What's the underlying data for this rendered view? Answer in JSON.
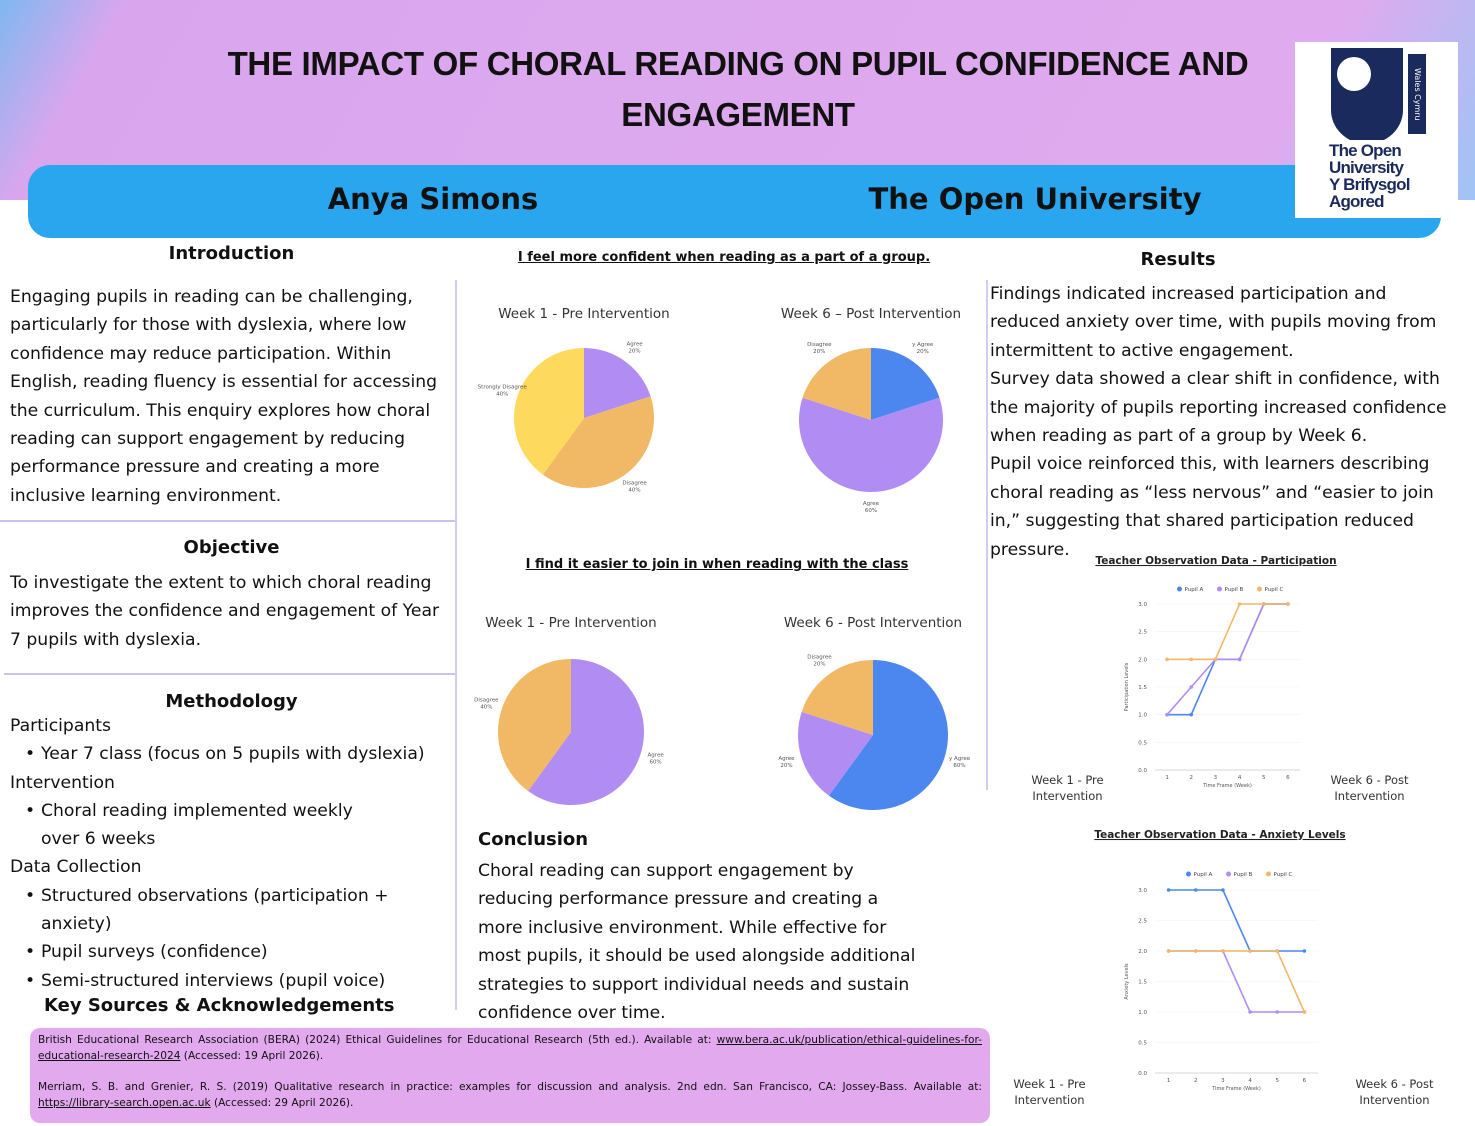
{
  "header": {
    "title": "THE IMPACT OF CHORAL READING ON PUPIL CONFIDENCE AND ENGAGEMENT",
    "author": "Anya Simons",
    "institution": "The Open University",
    "logo_lines": [
      "The Open",
      "University",
      "Y Brifysgol",
      "Agored"
    ],
    "logo_tag": "Wales Cymru"
  },
  "introduction": {
    "heading": "Introduction",
    "text": "Engaging pupils in reading can be challenging, particularly for those with dyslexia, where low confidence may reduce participation. Within English, reading fluency is essential for accessing the curriculum. This enquiry explores how choral reading can support engagement by reducing performance pressure and creating a more inclusive learning environment."
  },
  "objective": {
    "heading": "Objective",
    "text": "To investigate the extent to which choral reading improves the confidence and engagement of Year 7 pupils with dyslexia."
  },
  "methodology": {
    "heading": "Methodology",
    "groups": [
      {
        "label": "Participants",
        "bullets": [
          "Year 7 class (focus on 5 pupils with dyslexia)"
        ]
      },
      {
        "label": "Intervention",
        "bullets": [
          "Choral reading implemented weekly over 6 weeks"
        ]
      },
      {
        "label": "Data Collection",
        "bullets": [
          "Structured observations (participation + anxiety)",
          "Pupil surveys (confidence)",
          "Semi-structured interviews (pupil voice)"
        ]
      }
    ]
  },
  "survey_questions": [
    "I feel more confident when reading as a part of a group.",
    "I find it easier to join in when reading with the class"
  ],
  "conclusion": {
    "heading": "Conclusion",
    "text": "Choral reading can support engagement by reducing performance pressure and creating a more inclusive environment. While effective for most pupils, it should be used alongside additional strategies to support individual needs and sustain confidence over time."
  },
  "results": {
    "heading": "Results",
    "paragraphs": [
      "Findings indicated increased participation and reduced anxiety over time, with pupils moving from intermittent to active engagement.",
      "Survey data showed a clear shift in confidence, with the majority of pupils reporting increased confidence when reading as part of a group by Week 6.",
      "Pupil voice reinforced this, with learners describing choral reading as “less nervous” and “easier to join in,” suggesting that shared participation reduced pressure."
    ]
  },
  "sources": {
    "heading": "Key Sources & Acknowledgements",
    "references": [
      {
        "text": "British Educational Research Association (BERA) (2024) Ethical Guidelines for Educational Research (5th ed.). Available at: ",
        "link": "www.bera.ac.uk/publication/ethical-guidelines-for-educational-research-2024",
        "after": " (Accessed: 19 April 2026)."
      },
      {
        "text": "Merriam, S. B. and Grenier, R. S. (2019) Qualitative research in practice: examples for discussion and analysis. 2nd edn. San Francisco, CA: Jossey-Bass. Available at: ",
        "link": "https://library-search.open.ac.uk",
        "after": " (Accessed: 29 April 2026)."
      }
    ]
  },
  "chart_data": [
    {
      "type": "pie",
      "title": "Week 1 - Pre Intervention",
      "categories": [
        "Agree",
        "Disagree",
        "Strongly Disagree"
      ],
      "values": [
        20,
        40,
        40
      ],
      "value_labels": [
        "20%",
        "40%",
        "40%"
      ],
      "colors": [
        "#b18cf3",
        "#f1b866",
        "#fdda5e"
      ]
    },
    {
      "type": "pie",
      "title": "Week 6 – Post Intervention",
      "categories": [
        "y Agree",
        "Agree",
        "Disagree"
      ],
      "values": [
        20,
        60,
        20
      ],
      "value_labels": [
        "20%",
        "60%",
        "20%"
      ],
      "colors": [
        "#4c86ef",
        "#b18cf3",
        "#f1b866"
      ]
    },
    {
      "type": "pie",
      "title": "Week 1 - Pre Intervention",
      "categories": [
        "Agree",
        "Disagree"
      ],
      "values": [
        60,
        40
      ],
      "value_labels": [
        "60%",
        "40%"
      ],
      "colors": [
        "#b18cf3",
        "#f1b866"
      ]
    },
    {
      "type": "pie",
      "title": "Week 6 - Post Intervention",
      "categories": [
        "y Agree",
        "Agree",
        "Disagree"
      ],
      "values": [
        60,
        20,
        20
      ],
      "value_labels": [
        "60%",
        "20%",
        "20%"
      ],
      "colors": [
        "#4c86ef",
        "#b18cf3",
        "#f1b866"
      ]
    },
    {
      "type": "line",
      "title": "Teacher Observation Data - Participation",
      "x_label": "Time Frame (Week)",
      "y_label": "Participation Levels",
      "x": [
        1,
        2,
        3,
        4,
        5,
        6
      ],
      "xlim": [
        0.5,
        6.5
      ],
      "xticks": [
        1,
        2,
        3,
        4,
        5,
        6
      ],
      "ylim": [
        0,
        3
      ],
      "yticks": [
        {
          "value": 0,
          "label": "0.0"
        },
        0.5,
        {
          "value": 1,
          "label": "1.0"
        },
        1.5,
        {
          "value": 2,
          "label": "2.0"
        },
        2.5,
        {
          "value": 3,
          "label": "3.0"
        }
      ],
      "series": [
        {
          "name": "Pupil A",
          "color": "#4c86ef",
          "values": [
            1,
            1,
            2,
            2,
            3,
            3
          ]
        },
        {
          "name": "Pupil B",
          "color": "#b18cf3",
          "values": [
            1,
            1.5,
            2,
            2,
            3,
            3
          ]
        },
        {
          "name": "Pupil C",
          "color": "#f1b866",
          "values": [
            2,
            2,
            2,
            3,
            3,
            3
          ]
        }
      ],
      "annotations": [
        "Week 1 - Pre Intervention",
        "Week 6 - Post Intervention"
      ]
    },
    {
      "type": "line",
      "title": "Teacher Observation Data - Anxiety Levels",
      "x_label": "Time Frame (Week)",
      "y_label": "Anxiety Levels",
      "x": [
        1,
        2,
        3,
        4,
        5,
        6
      ],
      "xlim": [
        0.5,
        6.5
      ],
      "xticks": [
        1,
        2,
        3,
        4,
        5,
        6
      ],
      "ylim": [
        0,
        3
      ],
      "yticks": [
        {
          "value": 0,
          "label": "0.0"
        },
        0.5,
        {
          "value": 1,
          "label": "1.0"
        },
        1.5,
        {
          "value": 2,
          "label": "2.0"
        },
        2.5,
        {
          "value": 3,
          "label": "3.0"
        }
      ],
      "series": [
        {
          "name": "Pupil A",
          "color": "#4c86ef",
          "values": [
            3,
            3,
            3,
            2,
            2,
            2
          ]
        },
        {
          "name": "Pupil B",
          "color": "#b18cf3",
          "values": [
            2,
            2,
            2,
            1,
            1,
            1
          ]
        },
        {
          "name": "Pupil C",
          "color": "#f1b866",
          "values": [
            2,
            2,
            2,
            2,
            2,
            1
          ]
        }
      ],
      "annotations": [
        "Week 1 - Pre Intervention",
        "Week 6 - Post Intervention"
      ]
    }
  ]
}
